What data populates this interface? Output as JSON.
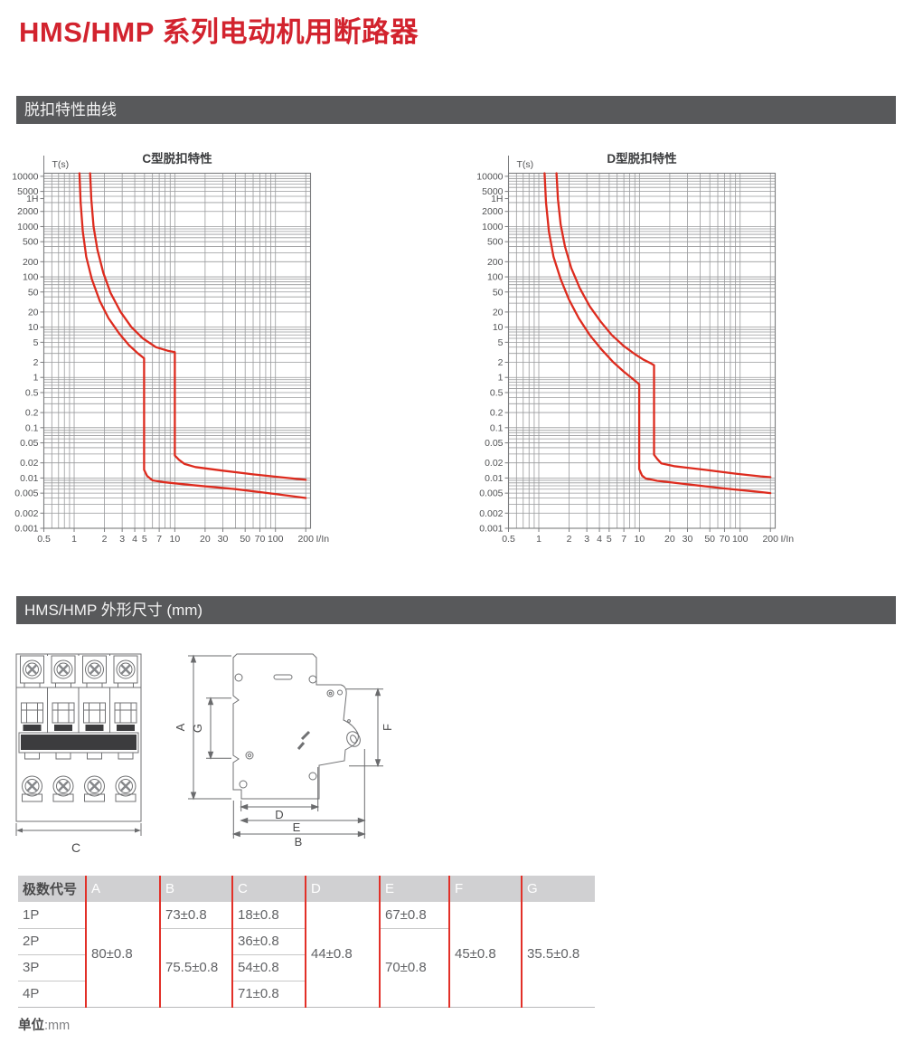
{
  "page": {
    "title": "HMS/HMP 系列电动机用断路器",
    "accent_red": "#d2232e"
  },
  "sections": [
    {
      "label": "脱扣特性曲线"
    },
    {
      "label": "HMS/HMP 外形尺寸 (mm)"
    }
  ],
  "chart_data": [
    {
      "type": "line",
      "title": "C型脱扣特性",
      "ylabel": "T(s)",
      "xlabel": "I/In",
      "xscale": "log",
      "yscale": "log",
      "grid": true,
      "xlim": [
        0.5,
        223
      ],
      "ylim": [
        0.001,
        11500
      ],
      "x_ticks": [
        {
          "v": 0.5,
          "label": "0.5"
        },
        {
          "v": 1,
          "label": "1"
        },
        {
          "v": 2,
          "label": "2"
        },
        {
          "v": 3,
          "label": "3"
        },
        {
          "v": 4,
          "label": "4"
        },
        {
          "v": 5,
          "label": "5"
        },
        {
          "v": 7,
          "label": "7"
        },
        {
          "v": 10,
          "label": "10"
        },
        {
          "v": 20,
          "label": "20"
        },
        {
          "v": 30,
          "label": "30"
        },
        {
          "v": 50,
          "label": "50"
        },
        {
          "v": 70,
          "label": "70"
        },
        {
          "v": 100,
          "label": "100"
        },
        {
          "v": 200,
          "label": "200"
        }
      ],
      "y_ticks": [
        {
          "v": 10000,
          "label": "10000"
        },
        {
          "v": 5000,
          "label": "5000"
        },
        {
          "v": 3600,
          "label": "1H"
        },
        {
          "v": 2000,
          "label": "2000"
        },
        {
          "v": 1000,
          "label": "1000"
        },
        {
          "v": 500,
          "label": "500"
        },
        {
          "v": 200,
          "label": "200"
        },
        {
          "v": 100,
          "label": "100"
        },
        {
          "v": 50,
          "label": "50"
        },
        {
          "v": 20,
          "label": "20"
        },
        {
          "v": 10,
          "label": "10"
        },
        {
          "v": 5,
          "label": "5"
        },
        {
          "v": 2,
          "label": "2"
        },
        {
          "v": 1,
          "label": "1"
        },
        {
          "v": 0.5,
          "label": "0.5"
        },
        {
          "v": 0.2,
          "label": "0.2"
        },
        {
          "v": 0.1,
          "label": "0.1"
        },
        {
          "v": 0.05,
          "label": "0.05"
        },
        {
          "v": 0.02,
          "label": "0.02"
        },
        {
          "v": 0.01,
          "label": "0.01"
        },
        {
          "v": 0.005,
          "label": "0.005"
        },
        {
          "v": 0.002,
          "label": "0.002"
        },
        {
          "v": 0.001,
          "label": "0.001"
        }
      ],
      "series": [
        {
          "name": "trip-band-lower",
          "color": "#dd2b1e",
          "points": [
            [
              1.13,
              11500
            ],
            [
              1.16,
              3000
            ],
            [
              1.22,
              800
            ],
            [
              1.32,
              250
            ],
            [
              1.5,
              90
            ],
            [
              1.8,
              33
            ],
            [
              2.2,
              15
            ],
            [
              2.8,
              7.5
            ],
            [
              3.5,
              4.4
            ],
            [
              4.3,
              3.0
            ],
            [
              4.95,
              2.4
            ],
            [
              4.95,
              0.0145
            ],
            [
              5.3,
              0.011
            ],
            [
              6.0,
              0.009
            ],
            [
              8,
              0.0082
            ],
            [
              15,
              0.0072
            ],
            [
              40,
              0.006
            ],
            [
              100,
              0.0048
            ],
            [
              200,
              0.004
            ]
          ]
        },
        {
          "name": "trip-band-upper",
          "color": "#dd2b1e",
          "points": [
            [
              1.44,
              11500
            ],
            [
              1.48,
              3500
            ],
            [
              1.56,
              1000
            ],
            [
              1.7,
              350
            ],
            [
              1.95,
              120
            ],
            [
              2.3,
              48
            ],
            [
              2.9,
              20
            ],
            [
              3.7,
              10
            ],
            [
              4.8,
              6.0
            ],
            [
              6.5,
              4.0
            ],
            [
              8.5,
              3.4
            ],
            [
              10,
              3.2
            ],
            [
              10,
              0.028
            ],
            [
              11,
              0.023
            ],
            [
              12.5,
              0.019
            ],
            [
              16,
              0.0165
            ],
            [
              30,
              0.014
            ],
            [
              60,
              0.0118
            ],
            [
              120,
              0.0102
            ],
            [
              200,
              0.0092
            ]
          ]
        }
      ]
    },
    {
      "type": "line",
      "title": "D型脱扣特性",
      "ylabel": "T(s)",
      "xlabel": "I/In",
      "xscale": "log",
      "yscale": "log",
      "grid": true,
      "xlim": [
        0.5,
        223
      ],
      "ylim": [
        0.001,
        11500
      ],
      "x_ticks": [
        {
          "v": 0.5,
          "label": "0.5"
        },
        {
          "v": 1,
          "label": "1"
        },
        {
          "v": 2,
          "label": "2"
        },
        {
          "v": 3,
          "label": "3"
        },
        {
          "v": 4,
          "label": "4"
        },
        {
          "v": 5,
          "label": "5"
        },
        {
          "v": 7,
          "label": "7"
        },
        {
          "v": 10,
          "label": "10"
        },
        {
          "v": 20,
          "label": "20"
        },
        {
          "v": 30,
          "label": "30"
        },
        {
          "v": 50,
          "label": "50"
        },
        {
          "v": 70,
          "label": "70"
        },
        {
          "v": 100,
          "label": "100"
        },
        {
          "v": 200,
          "label": "200"
        }
      ],
      "y_ticks": [
        {
          "v": 10000,
          "label": "10000"
        },
        {
          "v": 5000,
          "label": "5000"
        },
        {
          "v": 3600,
          "label": "1H"
        },
        {
          "v": 2000,
          "label": "2000"
        },
        {
          "v": 1000,
          "label": "1000"
        },
        {
          "v": 500,
          "label": "500"
        },
        {
          "v": 200,
          "label": "200"
        },
        {
          "v": 100,
          "label": "100"
        },
        {
          "v": 50,
          "label": "50"
        },
        {
          "v": 20,
          "label": "20"
        },
        {
          "v": 10,
          "label": "10"
        },
        {
          "v": 5,
          "label": "5"
        },
        {
          "v": 2,
          "label": "2"
        },
        {
          "v": 1,
          "label": "1"
        },
        {
          "v": 0.5,
          "label": "0.5"
        },
        {
          "v": 0.2,
          "label": "0.2"
        },
        {
          "v": 0.1,
          "label": "0.1"
        },
        {
          "v": 0.05,
          "label": "0.05"
        },
        {
          "v": 0.02,
          "label": "0.02"
        },
        {
          "v": 0.01,
          "label": "0.01"
        },
        {
          "v": 0.005,
          "label": "0.005"
        },
        {
          "v": 0.002,
          "label": "0.002"
        },
        {
          "v": 0.001,
          "label": "0.001"
        }
      ],
      "series": [
        {
          "name": "trip-band-lower",
          "color": "#dd2b1e",
          "points": [
            [
              1.14,
              11500
            ],
            [
              1.18,
              3000
            ],
            [
              1.26,
              800
            ],
            [
              1.4,
              250
            ],
            [
              1.65,
              90
            ],
            [
              2.0,
              35
            ],
            [
              2.5,
              15
            ],
            [
              3.2,
              7
            ],
            [
              4.2,
              3.6
            ],
            [
              5.5,
              2.0
            ],
            [
              7,
              1.3
            ],
            [
              8.5,
              0.95
            ],
            [
              9.95,
              0.73
            ],
            [
              9.95,
              0.015
            ],
            [
              10.6,
              0.0112
            ],
            [
              11.5,
              0.0098
            ],
            [
              15,
              0.0088
            ],
            [
              30,
              0.0075
            ],
            [
              70,
              0.0062
            ],
            [
              140,
              0.0054
            ],
            [
              200,
              0.005
            ]
          ]
        },
        {
          "name": "trip-band-upper",
          "color": "#dd2b1e",
          "points": [
            [
              1.5,
              11500
            ],
            [
              1.55,
              3500
            ],
            [
              1.65,
              1100
            ],
            [
              1.82,
              400
            ],
            [
              2.1,
              150
            ],
            [
              2.55,
              60
            ],
            [
              3.2,
              26
            ],
            [
              4.1,
              13
            ],
            [
              5.3,
              7
            ],
            [
              7,
              4.2
            ],
            [
              9,
              2.9
            ],
            [
              11,
              2.25
            ],
            [
              13,
              1.9
            ],
            [
              13.95,
              1.75
            ],
            [
              13.95,
              0.029
            ],
            [
              15,
              0.024
            ],
            [
              16.5,
              0.0195
            ],
            [
              22,
              0.0172
            ],
            [
              45,
              0.0145
            ],
            [
              90,
              0.0122
            ],
            [
              160,
              0.0108
            ],
            [
              200,
              0.0104
            ]
          ]
        }
      ]
    }
  ],
  "drawing": {
    "front_view_label": "C",
    "side_labels": {
      "A": "A",
      "G": "G",
      "F": "F",
      "D": "D",
      "E": "E",
      "B": "B"
    }
  },
  "table": {
    "headers": [
      "极数代号",
      "A",
      "B",
      "C",
      "D",
      "E",
      "F",
      "G"
    ],
    "rows": [
      "1P",
      "2P",
      "3P",
      "4P"
    ],
    "cells": {
      "A": "80±0.8",
      "B1": "73±0.8",
      "B234": "75.5±0.8",
      "C1": "18±0.8",
      "C2": "36±0.8",
      "C3": "54±0.8",
      "C4": "71±0.8",
      "D": "44±0.8",
      "E1": "67±0.8",
      "E234": "70±0.8",
      "F": "45±0.8",
      "G": "35.5±0.8"
    }
  },
  "unit_note": {
    "label": "单位",
    "value": ":mm"
  }
}
